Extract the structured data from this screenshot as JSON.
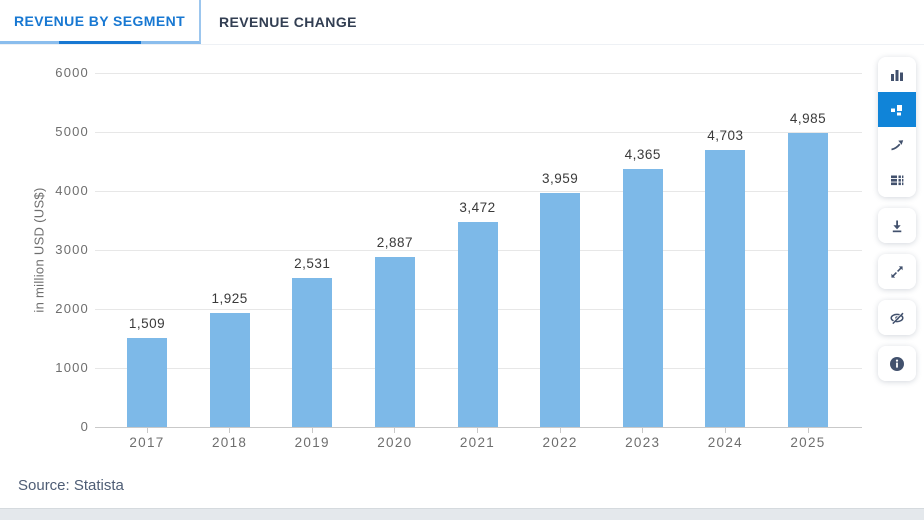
{
  "tabs": [
    {
      "label": "REVENUE BY SEGMENT",
      "active": true
    },
    {
      "label": "REVENUE CHANGE",
      "active": false
    }
  ],
  "source_text": "Source: Statista",
  "toolbar": {
    "items": [
      {
        "icon": "bar-chart-icon",
        "active": false
      },
      {
        "icon": "segmented-chart-icon",
        "active": true
      },
      {
        "icon": "trend-line-icon",
        "active": false
      },
      {
        "icon": "data-table-icon",
        "active": false
      },
      {
        "icon": "download-icon",
        "active": false
      },
      {
        "icon": "fullscreen-expand-icon",
        "active": false
      },
      {
        "icon": "hide-labels-eye-off-icon",
        "active": false
      },
      {
        "icon": "info-icon",
        "active": false
      }
    ],
    "active_bg": "#1084d8",
    "icon_color": "#42516d"
  },
  "colors": {
    "bar": "#7db9e8",
    "active_tab": "#1878d2",
    "tab_underline_light": "#8abded",
    "gridline": "#e7e7e7"
  },
  "chart_data": {
    "type": "bar",
    "title": "",
    "categories": [
      "2017",
      "2018",
      "2019",
      "2020",
      "2021",
      "2022",
      "2023",
      "2024",
      "2025"
    ],
    "values": [
      1509,
      1925,
      2531,
      2887,
      3472,
      3959,
      4365,
      4703,
      4985
    ],
    "value_labels": [
      "1,509",
      "1,925",
      "2,531",
      "2,887",
      "3,472",
      "3,959",
      "4,365",
      "4,703",
      "4,985"
    ],
    "xlabel": "",
    "ylabel": "in million USD (US$)",
    "ylim": [
      0,
      6000
    ],
    "yticks": [
      0,
      1000,
      2000,
      3000,
      4000,
      5000,
      6000
    ],
    "grid": true,
    "legend_position": "none",
    "bar_color": "#7db9e8"
  }
}
